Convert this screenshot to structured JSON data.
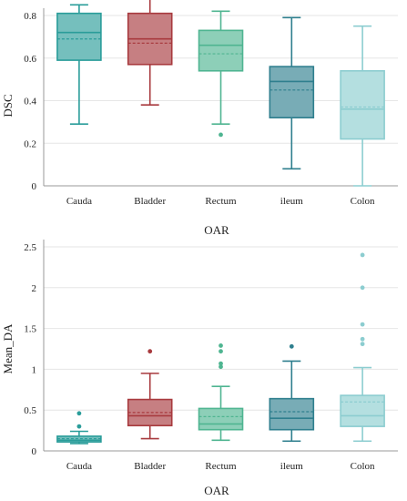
{
  "chart_data": [
    {
      "type": "box",
      "xlabel": "OAR",
      "ylabel": "DSC",
      "ylim": [
        0,
        0.8
      ],
      "yticks": [
        "0",
        "0.2",
        "0.4",
        "0.6",
        "0.8"
      ],
      "grid": true,
      "categories": [
        "Cauda",
        "Bladder",
        "Rectum",
        "ileum",
        "Colon"
      ],
      "colors": [
        "#2a9d9a",
        "#a83a3e",
        "#4fb591",
        "#2f7f8e",
        "#8ccdd0"
      ],
      "boxes": [
        {
          "category": "Cauda",
          "whisker_low": 0.29,
          "q1": 0.59,
          "median": 0.72,
          "mean": 0.69,
          "q3": 0.81,
          "whisker_high": 0.85,
          "outliers": []
        },
        {
          "category": "Bladder",
          "whisker_low": 0.38,
          "q1": 0.57,
          "median": 0.69,
          "mean": 0.67,
          "q3": 0.81,
          "whisker_high": 0.9,
          "outliers": []
        },
        {
          "category": "Rectum",
          "whisker_low": 0.29,
          "q1": 0.54,
          "median": 0.66,
          "mean": 0.62,
          "q3": 0.73,
          "whisker_high": 0.82,
          "outliers": [
            0.24
          ]
        },
        {
          "category": "ileum",
          "whisker_low": 0.08,
          "q1": 0.32,
          "median": 0.49,
          "mean": 0.45,
          "q3": 0.56,
          "whisker_high": 0.79,
          "outliers": []
        },
        {
          "category": "Colon",
          "whisker_low": 0.0,
          "q1": 0.22,
          "median": 0.36,
          "mean": 0.37,
          "q3": 0.54,
          "whisker_high": 0.75,
          "outliers": []
        }
      ]
    },
    {
      "type": "box",
      "xlabel": "OAR",
      "ylabel": "Mean_DA",
      "ylim": [
        0,
        2.5
      ],
      "yticks": [
        "0",
        "0.5",
        "1",
        "1.5",
        "2",
        "2.5"
      ],
      "grid": true,
      "categories": [
        "Cauda",
        "Bladder",
        "Rectum",
        "ileum",
        "Colon"
      ],
      "colors": [
        "#2a9d9a",
        "#a83a3e",
        "#4fb591",
        "#2f7f8e",
        "#8ccdd0"
      ],
      "boxes": [
        {
          "category": "Cauda",
          "whisker_low": 0.09,
          "q1": 0.11,
          "median": 0.13,
          "mean": 0.15,
          "q3": 0.18,
          "whisker_high": 0.24,
          "outliers": [
            0.3,
            0.46
          ]
        },
        {
          "category": "Bladder",
          "whisker_low": 0.15,
          "q1": 0.31,
          "median": 0.43,
          "mean": 0.47,
          "q3": 0.63,
          "whisker_high": 0.95,
          "outliers": [
            1.22
          ]
        },
        {
          "category": "Rectum",
          "whisker_low": 0.13,
          "q1": 0.26,
          "median": 0.33,
          "mean": 0.42,
          "q3": 0.52,
          "whisker_high": 0.79,
          "outliers": [
            1.03,
            1.07,
            1.22,
            1.29
          ]
        },
        {
          "category": "ileum",
          "whisker_low": 0.12,
          "q1": 0.26,
          "median": 0.4,
          "mean": 0.48,
          "q3": 0.64,
          "whisker_high": 1.1,
          "outliers": [
            1.28
          ]
        },
        {
          "category": "Colon",
          "whisker_low": 0.12,
          "q1": 0.3,
          "median": 0.43,
          "mean": 0.6,
          "q3": 0.68,
          "whisker_high": 1.02,
          "outliers": [
            1.31,
            1.37,
            1.55,
            2.0,
            2.4
          ]
        }
      ]
    }
  ]
}
